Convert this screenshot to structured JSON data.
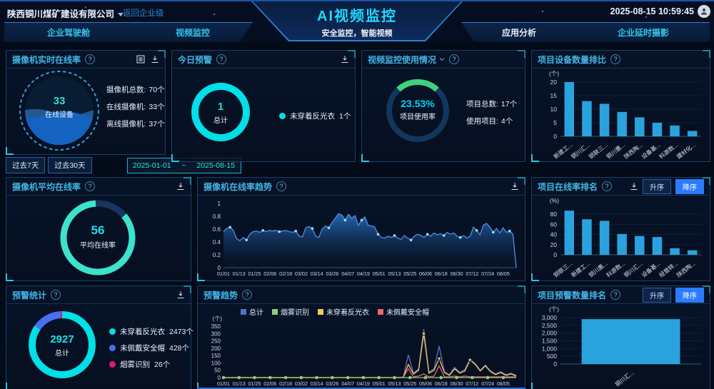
{
  "header": {
    "company": "陕西铜川煤矿建设有限公司",
    "back_link": "返回企业级",
    "title": "AI视频监控",
    "subtitle": "安全监控，智能视频",
    "datetime": "2025-08-15 10:59:45",
    "tabs": [
      {
        "label": "企业驾驶舱"
      },
      {
        "label": "视频监控"
      },
      {
        "label": "应用分析"
      },
      {
        "label": "企业延时摄影"
      }
    ]
  },
  "controls": {
    "past7": "过去7天",
    "past30": "过去30天",
    "range_start": "2025-01-01",
    "range_sep": "~",
    "range_end": "2025-08-15"
  },
  "sort_buttons": {
    "asc": "升序",
    "desc": "降序"
  },
  "panels": {
    "camera_realtime": {
      "title": "摄像机实时在线率",
      "center": {
        "value": "33",
        "label": "在线设备"
      },
      "chart": {
        "type": "liquid",
        "percent": 47
      },
      "stats": [
        {
          "label": "摄像机总数:",
          "value": "70个"
        },
        {
          "label": "在线摄像机:",
          "value": "33个"
        },
        {
          "label": "离线摄像机:",
          "value": "37个"
        }
      ]
    },
    "today_alert": {
      "title": "今日预警",
      "center": {
        "value": "1",
        "label": "总计"
      },
      "chart": {
        "type": "donut",
        "r": 36,
        "thickness": 10,
        "segments": [
          {
            "value": 1,
            "color": "#00e0e6"
          }
        ]
      },
      "legend": [
        {
          "label": "未穿着反光衣",
          "value": "1个",
          "color": "#00e0e6"
        }
      ]
    },
    "usage": {
      "title": "视频监控使用情况",
      "center": {
        "value": "23.53%",
        "label": "项目使用率"
      },
      "chart": {
        "type": "arc",
        "percent": 23.53,
        "color": "#3fd17c",
        "track": "#12375f",
        "r": 40,
        "thickness": 8,
        "center_top": true
      },
      "stats": [
        {
          "label": "项目总数:",
          "value": "17个"
        },
        {
          "label": "使用项目:",
          "value": "4个"
        }
      ]
    },
    "device_rank": {
      "title": "项目设备数量排比",
      "chart": {
        "type": "bar",
        "unit": "(个)",
        "ymax": 20,
        "yticks": [
          0,
          5,
          10,
          15,
          20
        ],
        "categories": [
          "新建工...",
          "铜川汇...",
          "铜联三...",
          "铜川惠...",
          "陕西陶...",
          "设备基...",
          "科源数...",
          "建材化..."
        ],
        "values": [
          20,
          13,
          12,
          9,
          7,
          5,
          4,
          2
        ],
        "color": "#2aa2de",
        "barw": 0.55
      }
    },
    "camera_avg": {
      "title": "摄像机平均在线率",
      "center": {
        "value": "56",
        "label": "平均在线率"
      },
      "chart": {
        "type": "arc",
        "percent": 85,
        "color": "#3ce2cc",
        "track": "#16355f",
        "r": 48,
        "thickness": 9,
        "rot": -40
      }
    },
    "online_trend": {
      "title": "摄像机在线率趋势",
      "chart": {
        "type": "line",
        "ymax": 1,
        "yticks": [
          0,
          0.2,
          0.4,
          0.6,
          0.8,
          1
        ],
        "ytick_labels": [
          "0",
          "0.2",
          "0.4",
          "0.6",
          "0.8",
          "1"
        ],
        "xticks": [
          "01/01",
          "01/13",
          "01/25",
          "02/06",
          "02/18",
          "03/02",
          "03/14",
          "03/26",
          "04/07",
          "04/19",
          "05/01",
          "05/13",
          "05/25",
          "06/06",
          "06/18",
          "06/30",
          "07/12",
          "07/24",
          "08/05"
        ],
        "tick_step": 0.0531,
        "series": [
          {
            "name": "在线率",
            "color": "#4f8fe2",
            "area": true,
            "dotcolor": "#86e8ff",
            "dotevery": 5,
            "values": [
              0.56,
              0.61,
              0.63,
              0.58,
              0.45,
              0.42,
              0.47,
              0.43,
              0.52,
              0.56,
              0.57,
              0.55,
              0.58,
              0.56,
              0.58,
              0.57,
              0.58,
              0.56,
              0.57,
              0.58,
              0.56,
              0.55,
              0.57,
              0.49,
              0.48,
              0.62,
              0.64,
              0.61,
              0.49,
              0.47,
              0.6,
              0.65,
              0.62,
              0.7,
              0.77,
              0.84,
              0.82,
              0.74,
              0.83,
              0.77,
              0.81,
              0.66,
              0.74,
              0.79,
              0.66,
              0.65,
              0.63,
              0.52,
              0.47,
              0.46,
              0.49,
              0.47,
              0.5,
              0.46,
              0.44,
              0.5,
              0.46,
              0.43,
              0.49,
              0.52,
              0.5,
              0.47,
              0.52,
              0.49,
              0.54,
              0.51,
              0.53,
              0.5,
              0.55,
              0.52,
              0.54,
              0.49,
              0.47,
              0.5,
              0.46,
              0.49,
              0.63,
              0.58,
              0.51,
              0.66,
              0.69,
              0.63,
              0.55,
              0.61,
              0.54,
              0.62,
              0.55,
              0.57,
              0.52,
              0.0
            ]
          }
        ]
      }
    },
    "online_rank": {
      "title": "项目在线率排名",
      "chart": {
        "type": "bar",
        "unit": "(%)",
        "ymax": 90,
        "yticks": [
          0,
          20,
          40,
          60,
          80
        ],
        "categories": [
          "铜联三...",
          "新建工...",
          "铜川惠...",
          "科源数...",
          "铜川汇...",
          "设备基...",
          "经营转...",
          "陕西陶..."
        ],
        "values": [
          87,
          70,
          67,
          41,
          37,
          35,
          13,
          9
        ],
        "color": "#2aa2de",
        "barw": 0.55
      }
    },
    "alert_stats": {
      "title": "预警统计",
      "center": {
        "value": "2927",
        "label": "总计"
      },
      "chart": {
        "type": "donut",
        "r": 42,
        "thickness": 10,
        "segments": [
          {
            "value": 2473,
            "color": "#00e0e6"
          },
          {
            "value": 428,
            "color": "#4a6ff0"
          },
          {
            "value": 26,
            "color": "#e0197f"
          }
        ]
      },
      "legend": [
        {
          "label": "未穿着反光衣",
          "value": "2473个",
          "color": "#00e0e6"
        },
        {
          "label": "未佩戴安全帽",
          "value": "428个",
          "color": "#4a6ff0"
        },
        {
          "label": "烟雾识别",
          "value": "26个",
          "color": "#e0197f"
        }
      ]
    },
    "alert_trend": {
      "title": "预警趋势",
      "legend": [
        {
          "label": "总计",
          "color": "#5470c6"
        },
        {
          "label": "烟雾识别",
          "color": "#91cc75"
        },
        {
          "label": "未穿着反光衣",
          "color": "#fac858"
        },
        {
          "label": "未佩戴安全帽",
          "color": "#ee6666"
        }
      ],
      "chart": {
        "type": "line",
        "unit": "(个)",
        "ymax": 350,
        "yticks": [
          0,
          50,
          100,
          150,
          200,
          250,
          300,
          350
        ],
        "ytick_labels": [
          "0",
          "50",
          "100",
          "150",
          "200",
          "250",
          "300",
          "350"
        ],
        "xticks": [
          "01/01",
          "01/13",
          "01/25",
          "02/06",
          "02/18",
          "03/02",
          "03/14",
          "03/26",
          "04/07",
          "04/19",
          "05/01",
          "05/13",
          "05/25",
          "06/06",
          "06/18",
          "06/30",
          "07/12",
          "07/24",
          "08/05"
        ],
        "tick_step": 0.0531,
        "series": [
          {
            "name": "总计",
            "color": "#5470c6",
            "values": [
              0,
              0,
              0,
              0,
              0,
              0,
              0,
              0,
              0,
              0,
              0,
              0,
              0,
              0,
              0,
              0,
              0,
              0,
              0,
              0,
              0,
              0,
              0,
              0,
              0,
              0,
              0,
              0,
              0,
              0,
              0,
              0,
              0,
              0,
              0,
              5,
              155,
              30,
              60,
              330,
              35,
              60,
              215,
              40,
              20,
              70,
              35,
              55,
              125,
              95,
              50,
              85,
              45,
              25,
              40,
              20,
              30,
              15
            ]
          },
          {
            "name": "未穿着反光衣",
            "color": "#fac858",
            "dotmin": 120,
            "values": [
              0,
              0,
              0,
              0,
              0,
              0,
              0,
              0,
              0,
              0,
              0,
              0,
              0,
              0,
              0,
              0,
              0,
              0,
              0,
              0,
              0,
              0,
              0,
              0,
              0,
              0,
              0,
              0,
              0,
              0,
              0,
              0,
              0,
              0,
              0,
              3,
              90,
              25,
              50,
              300,
              30,
              50,
              130,
              35,
              15,
              60,
              30,
              45,
              120,
              90,
              45,
              80,
              40,
              20,
              35,
              15,
              25,
              10
            ]
          },
          {
            "name": "未佩戴安全帽",
            "color": "#ee6666",
            "values": [
              0,
              0,
              0,
              0,
              0,
              0,
              0,
              0,
              0,
              0,
              0,
              0,
              0,
              0,
              0,
              0,
              0,
              0,
              0,
              0,
              0,
              0,
              0,
              0,
              0,
              0,
              0,
              0,
              0,
              0,
              0,
              0,
              0,
              0,
              0,
              2,
              60,
              5,
              10,
              25,
              5,
              10,
              80,
              5,
              5,
              10,
              5,
              10,
              5,
              5,
              5,
              5,
              5,
              5,
              5,
              5,
              5,
              5
            ]
          },
          {
            "name": "烟雾识别",
            "color": "#91cc75",
            "dots_at_ticks": true,
            "values": [
              0,
              0,
              0,
              0,
              0,
              0,
              0,
              0,
              0,
              0,
              0,
              0,
              0,
              0,
              0,
              0,
              0,
              0,
              0,
              0,
              0,
              0,
              0,
              0,
              0,
              0,
              0,
              0,
              0,
              0,
              0,
              0,
              0,
              0,
              0,
              0,
              0,
              0,
              0,
              0,
              0,
              0,
              0,
              0,
              0,
              0,
              0,
              0,
              0,
              0,
              0,
              0,
              0,
              0,
              0,
              0,
              0,
              0
            ]
          }
        ]
      }
    },
    "alert_rank": {
      "title": "项目预警数量排名",
      "chart": {
        "type": "bar",
        "unit": "(个)",
        "ymax": 3000,
        "yticks": [
          0,
          500,
          1000,
          1500,
          2000,
          2500,
          3000
        ],
        "ytick_labels": [
          "0",
          "500",
          "1,000",
          "1,500",
          "2,000",
          "2,500",
          "3,000"
        ],
        "categories": [
          "铜川汇..."
        ],
        "values": [
          2901
        ],
        "color": "#2aa2de",
        "barw": 0.7
      }
    }
  }
}
